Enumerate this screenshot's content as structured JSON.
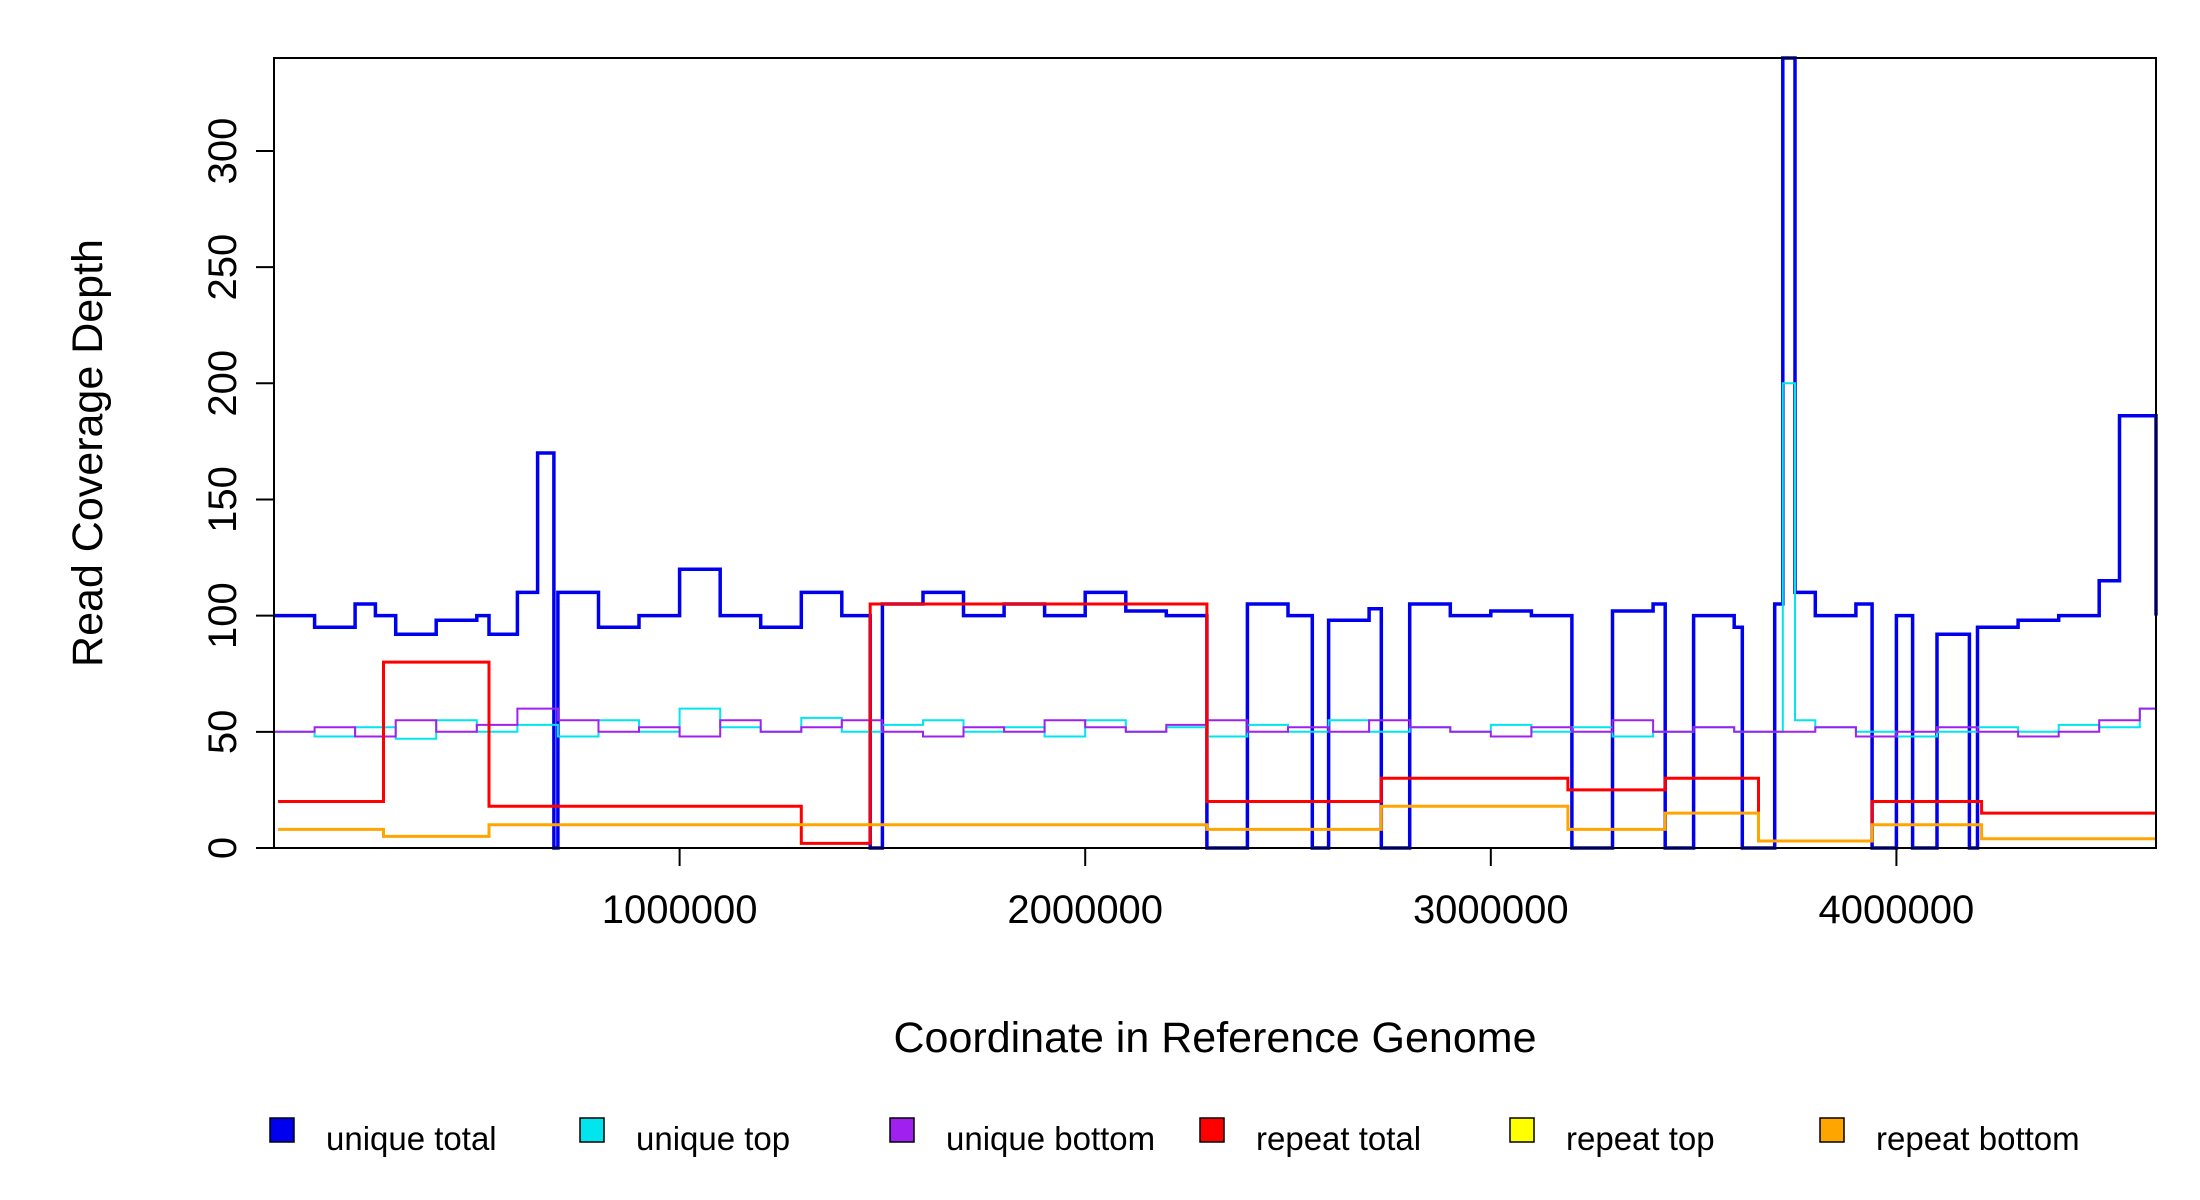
{
  "chart_data": {
    "type": "line",
    "title": "",
    "xlabel": "Coordinate in Reference Genome",
    "ylabel": "Read Coverage Depth",
    "xlim": [
      0,
      4640000
    ],
    "ylim": [
      0,
      340
    ],
    "x_ticks": [
      1000000,
      2000000,
      3000000,
      4000000
    ],
    "x_tick_labels": [
      "1000000",
      "2000000",
      "3000000",
      "4000000"
    ],
    "y_ticks": [
      0,
      50,
      100,
      150,
      200,
      250,
      300
    ],
    "y_tick_labels": [
      "0",
      "50",
      "100",
      "150",
      "200",
      "250",
      "300"
    ],
    "grid": false,
    "legend_position": "bottom",
    "legend": [
      {
        "label": "unique total",
        "color": "#0000ee"
      },
      {
        "label": "unique top",
        "color": "#00e5ee"
      },
      {
        "label": "unique bottom",
        "color": "#a020f0"
      },
      {
        "label": "repeat total",
        "color": "#ff0000"
      },
      {
        "label": "repeat top",
        "color": "#ffff00"
      },
      {
        "label": "repeat bottom",
        "color": "#ffa500"
      }
    ],
    "series": [
      {
        "name": "unique total",
        "color": "#0000ee",
        "x": [
          0,
          100000,
          200000,
          250000,
          300000,
          400000,
          500000,
          530000,
          600000,
          650000,
          690000,
          700000,
          800000,
          900000,
          1000000,
          1100000,
          1200000,
          1300000,
          1400000,
          1470000,
          1500000,
          1600000,
          1700000,
          1800000,
          1900000,
          2000000,
          2100000,
          2200000,
          2300000,
          2400000,
          2500000,
          2560000,
          2600000,
          2700000,
          2730000,
          2800000,
          2900000,
          3000000,
          3100000,
          3200000,
          3300000,
          3400000,
          3430000,
          3500000,
          3600000,
          3620000,
          3700000,
          3720000,
          3750000,
          3800000,
          3900000,
          3940000,
          4000000,
          4040000,
          4100000,
          4180000,
          4200000,
          4300000,
          4400000,
          4500000,
          4550000,
          4640000
        ],
        "values": [
          100,
          95,
          105,
          100,
          92,
          98,
          100,
          92,
          110,
          170,
          0,
          110,
          95,
          100,
          120,
          100,
          95,
          110,
          100,
          0,
          105,
          110,
          100,
          105,
          100,
          110,
          102,
          100,
          0,
          105,
          100,
          0,
          98,
          103,
          0,
          105,
          100,
          102,
          100,
          0,
          102,
          105,
          0,
          100,
          95,
          0,
          105,
          340,
          110,
          100,
          105,
          0,
          100,
          0,
          92,
          0,
          95,
          98,
          100,
          115,
          186,
          100
        ]
      },
      {
        "name": "unique top",
        "color": "#00e5ee",
        "x": [
          0,
          100000,
          200000,
          300000,
          400000,
          500000,
          600000,
          700000,
          800000,
          900000,
          1000000,
          1100000,
          1200000,
          1300000,
          1400000,
          1500000,
          1600000,
          1700000,
          1800000,
          1900000,
          2000000,
          2100000,
          2200000,
          2300000,
          2400000,
          2500000,
          2600000,
          2700000,
          2800000,
          2900000,
          3000000,
          3100000,
          3200000,
          3300000,
          3400000,
          3500000,
          3600000,
          3700000,
          3720000,
          3750000,
          3800000,
          3900000,
          4000000,
          4100000,
          4200000,
          4300000,
          4400000,
          4500000,
          4600000,
          4640000
        ],
        "values": [
          50,
          48,
          52,
          47,
          55,
          50,
          53,
          48,
          55,
          50,
          60,
          52,
          50,
          56,
          50,
          53,
          55,
          50,
          52,
          48,
          55,
          50,
          52,
          48,
          53,
          50,
          55,
          50,
          52,
          50,
          53,
          50,
          52,
          48,
          50,
          52,
          50,
          50,
          200,
          55,
          52,
          50,
          48,
          50,
          52,
          50,
          53,
          52,
          60,
          55
        ]
      },
      {
        "name": "unique bottom",
        "color": "#a020f0",
        "x": [
          0,
          100000,
          200000,
          300000,
          400000,
          500000,
          600000,
          700000,
          800000,
          900000,
          1000000,
          1100000,
          1200000,
          1300000,
          1400000,
          1500000,
          1600000,
          1700000,
          1800000,
          1900000,
          2000000,
          2100000,
          2200000,
          2300000,
          2400000,
          2500000,
          2600000,
          2700000,
          2800000,
          2900000,
          3000000,
          3100000,
          3200000,
          3300000,
          3400000,
          3500000,
          3600000,
          3700000,
          3800000,
          3900000,
          4000000,
          4100000,
          4200000,
          4300000,
          4400000,
          4500000,
          4600000,
          4640000
        ],
        "values": [
          50,
          52,
          48,
          55,
          50,
          53,
          60,
          55,
          50,
          52,
          48,
          55,
          50,
          52,
          55,
          50,
          48,
          52,
          50,
          55,
          52,
          50,
          53,
          55,
          50,
          52,
          50,
          55,
          52,
          50,
          48,
          52,
          50,
          55,
          50,
          52,
          50,
          50,
          52,
          48,
          50,
          52,
          50,
          48,
          50,
          55,
          60,
          52
        ]
      },
      {
        "name": "repeat total",
        "color": "#ff0000",
        "x": [
          10000,
          270000,
          530000,
          1300000,
          1470000,
          2300000,
          2730000,
          3190000,
          3430000,
          3660000,
          3940000,
          4210000
        ],
        "values": [
          20,
          80,
          18,
          2,
          105,
          20,
          30,
          25,
          30,
          3,
          20,
          15
        ]
      },
      {
        "name": "repeat top",
        "color": "#ffff00",
        "x": [
          0,
          4640000
        ],
        "values": [
          0,
          0
        ]
      },
      {
        "name": "repeat bottom",
        "color": "#ffa500",
        "x": [
          10000,
          270000,
          530000,
          2300000,
          2730000,
          3190000,
          3430000,
          3660000,
          3940000,
          4210000
        ],
        "values": [
          8,
          5,
          10,
          8,
          18,
          8,
          15,
          3,
          10,
          4
        ]
      }
    ]
  }
}
